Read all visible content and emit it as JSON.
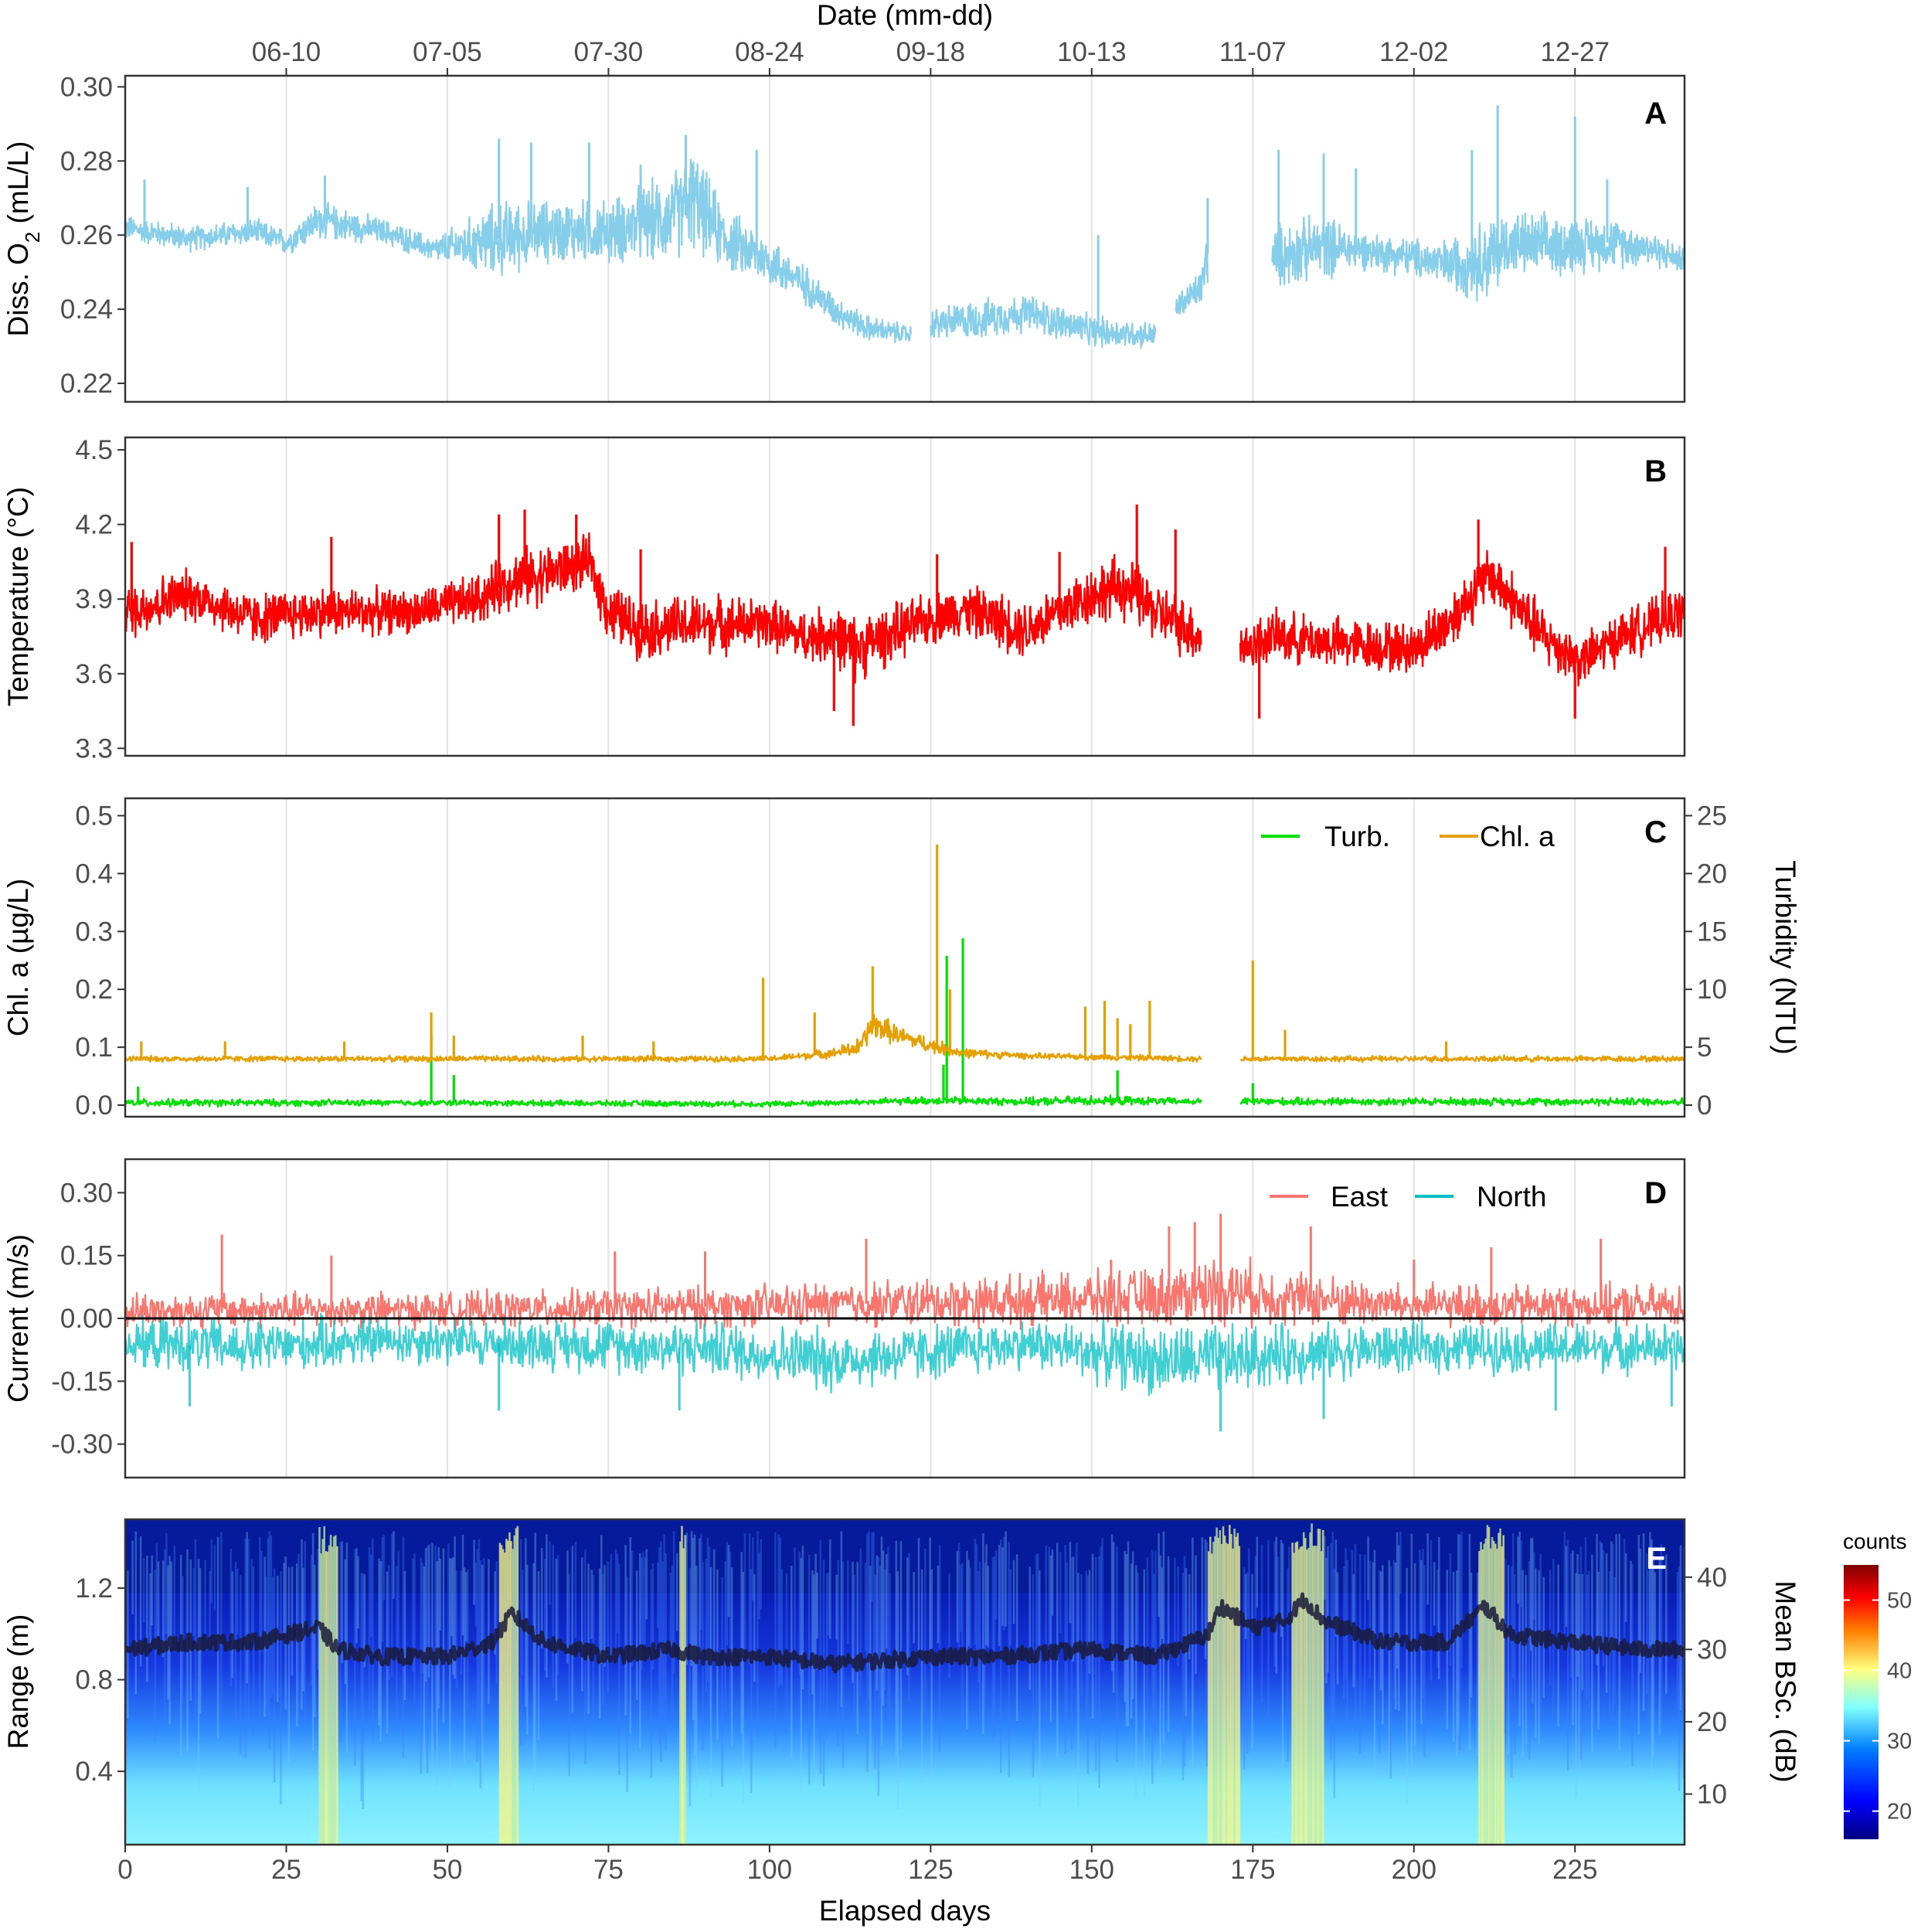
{
  "chart_data": [
    {
      "panel": "A",
      "type": "line",
      "top_axis": {
        "label": "Date (mm-dd)",
        "tick_labels": [
          "06-10",
          "07-05",
          "07-30",
          "08-24",
          "09-18",
          "10-13",
          "11-07",
          "12-02",
          "12-27"
        ],
        "tick_days": [
          25,
          50,
          75,
          100,
          125,
          150,
          175,
          200,
          225
        ]
      },
      "ylabel_main": "Diss. O",
      "ylabel_sub": "2",
      "ylabel_unit": " (mL/L)",
      "ylim": [
        0.215,
        0.303
      ],
      "yticks": [
        0.22,
        0.24,
        0.26,
        0.28,
        0.3
      ],
      "ytick_labels": [
        "0.22",
        "0.24",
        "0.26",
        "0.28",
        "0.30"
      ],
      "xlim": [
        0,
        242
      ],
      "grid": true,
      "series": [
        {
          "color": "#87ceeb",
          "x": [
            0,
            10,
            20,
            25,
            30,
            40,
            48,
            58,
            65,
            75,
            85,
            88,
            93,
            100,
            106,
            110,
            115,
            122,
            123,
            125,
            131,
            140,
            150,
            160,
            161,
            163,
            167,
            168,
            174,
            178,
            186,
            192,
            200,
            205,
            212,
            215,
            220,
            230,
            236,
            242
          ],
          "y": [
            0.262,
            0.259,
            0.261,
            0.258,
            0.264,
            0.261,
            0.256,
            0.259,
            0.261,
            0.261,
            0.265,
            0.27,
            0.259,
            0.253,
            0.246,
            0.24,
            0.235,
            0.233,
            null,
            0.236,
            0.237,
            0.239,
            0.234,
            0.233,
            null,
            0.24,
            0.246,
            0.255,
            null,
            0.254,
            0.257,
            0.256,
            0.254,
            0.252,
            0.254,
            0.258,
            0.257,
            0.258,
            0.257,
            0.253
          ],
          "spread": [
            0.004,
            0.004,
            0.004,
            0.004,
            0.006,
            0.004,
            0.004,
            0.012,
            0.01,
            0.01,
            0.014,
            0.016,
            0.01,
            0.008,
            0.006,
            0.005,
            0.004,
            0.003,
            0,
            0.005,
            0.006,
            0.006,
            0.005,
            0.004,
            0,
            0.004,
            0.006,
            0.01,
            0,
            0.01,
            0.01,
            0.006,
            0.006,
            0.008,
            0.014,
            0.01,
            0.01,
            0.008,
            0.006,
            0.004
          ],
          "peaks": [
            [
              3,
              0.275
            ],
            [
              19,
              0.273
            ],
            [
              31,
              0.276
            ],
            [
              58,
              0.286
            ],
            [
              63,
              0.285
            ],
            [
              72,
              0.285
            ],
            [
              80,
              0.279
            ],
            [
              87,
              0.287
            ],
            [
              98,
              0.283
            ],
            [
              151,
              0.26
            ],
            [
              168,
              0.27
            ],
            [
              179,
              0.283
            ],
            [
              186,
              0.282
            ],
            [
              191,
              0.278
            ],
            [
              209,
              0.283
            ],
            [
              213,
              0.295
            ],
            [
              225,
              0.292
            ],
            [
              230,
              0.275
            ]
          ]
        }
      ]
    },
    {
      "panel": "B",
      "type": "line",
      "ylabel": "Temperature (°C)",
      "ylim": [
        3.27,
        4.55
      ],
      "yticks": [
        3.3,
        3.6,
        3.9,
        4.2,
        4.5
      ],
      "ytick_labels": [
        "3.3",
        "3.6",
        "3.9",
        "4.2",
        "4.5"
      ],
      "xlim": [
        0,
        242
      ],
      "grid": true,
      "series": [
        {
          "color": "#ff0000",
          "x": [
            0,
            10,
            20,
            30,
            45,
            55,
            60,
            65,
            72,
            75,
            80,
            90,
            100,
            105,
            110,
            113,
            118,
            125,
            130,
            140,
            150,
            155,
            160,
            167,
            168,
            173,
            178,
            190,
            200,
            205,
            210,
            212,
            220,
            226,
            232,
            242
          ],
          "y": [
            3.85,
            3.92,
            3.82,
            3.85,
            3.85,
            3.9,
            3.98,
            4.0,
            4.05,
            3.85,
            3.78,
            3.8,
            3.8,
            3.75,
            3.76,
            3.7,
            3.75,
            3.82,
            3.86,
            3.78,
            3.92,
            3.95,
            3.85,
            3.75,
            null,
            3.7,
            3.75,
            3.72,
            3.7,
            3.8,
            3.95,
            4.0,
            3.75,
            3.65,
            3.75,
            3.85
          ],
          "spread": [
            0.14,
            0.12,
            0.12,
            0.12,
            0.1,
            0.12,
            0.14,
            0.14,
            0.12,
            0.14,
            0.14,
            0.14,
            0.12,
            0.12,
            0.14,
            0.16,
            0.14,
            0.12,
            0.12,
            0.14,
            0.14,
            0.16,
            0.14,
            0.14,
            0,
            0.12,
            0.12,
            0.12,
            0.12,
            0.14,
            0.14,
            0.14,
            0.14,
            0.12,
            0.12,
            0.12
          ],
          "peaks": [
            [
              1,
              4.13
            ],
            [
              32,
              4.15
            ],
            [
              58,
              4.24
            ],
            [
              62,
              4.26
            ],
            [
              70,
              4.24
            ],
            [
              80,
              4.1
            ],
            [
              110,
              3.45
            ],
            [
              113,
              3.39
            ],
            [
              126,
              4.08
            ],
            [
              145,
              4.09
            ],
            [
              157,
              4.28
            ],
            [
              163,
              4.18
            ],
            [
              176,
              3.42
            ],
            [
              210,
              4.22
            ],
            [
              225,
              3.42
            ],
            [
              239,
              4.11
            ]
          ]
        }
      ]
    },
    {
      "panel": "C",
      "type": "line",
      "ylabel": "Chl. a (µg/L)",
      "ylabel_right": "Turbidity (NTU)",
      "ylim": [
        -0.02,
        0.53
      ],
      "yticks": [
        0.0,
        0.1,
        0.2,
        0.3,
        0.4,
        0.5
      ],
      "ytick_labels": [
        "0.0",
        "0.1",
        "0.2",
        "0.3",
        "0.4",
        "0.5"
      ],
      "ylim_right": [
        -1,
        26.5
      ],
      "yticks_right": [
        0,
        5,
        10,
        15,
        20,
        25
      ],
      "ytick_labels_right": [
        "0",
        "5",
        "10",
        "15",
        "20",
        "25"
      ],
      "xlim": [
        0,
        242
      ],
      "grid": true,
      "legend": {
        "position": "top-right"
      },
      "series": [
        {
          "name": "Turb.",
          "axis": "right",
          "color": "#00e000",
          "x": [
            0,
            50,
            100,
            110,
            125,
            140,
            150,
            167,
            168,
            173,
            242
          ],
          "y": [
            0.2,
            0.2,
            0.1,
            0.2,
            0.4,
            0.3,
            0.4,
            0.3,
            null,
            0.3,
            0.3
          ],
          "spread": [
            0.4,
            0.3,
            0.3,
            0.3,
            0.4,
            0.4,
            0.5,
            0.3,
            0,
            0.4,
            0.4
          ],
          "peaks": [
            [
              2,
              1.6
            ],
            [
              47.5,
              6.1
            ],
            [
              51,
              2.6
            ],
            [
              127,
              3.5
            ],
            [
              127.5,
              12.9
            ],
            [
              130,
              14.4
            ],
            [
              154,
              3.0
            ],
            [
              175,
              1.9
            ]
          ]
        },
        {
          "name": "Chl. a",
          "axis": "left",
          "color": "#e69f00",
          "x": [
            0,
            50,
            100,
            110,
            114,
            116,
            120,
            126,
            130,
            140,
            167,
            168,
            173,
            242
          ],
          "y": [
            0.08,
            0.08,
            0.08,
            0.09,
            0.1,
            0.14,
            0.12,
            0.1,
            0.09,
            0.085,
            0.08,
            null,
            0.08,
            0.08
          ],
          "spread": [
            0.006,
            0.006,
            0.006,
            0.01,
            0.02,
            0.03,
            0.02,
            0.015,
            0.01,
            0.006,
            0.006,
            0,
            0.006,
            0.006
          ],
          "peaks": [
            [
              2.5,
              0.11
            ],
            [
              15.5,
              0.11
            ],
            [
              34,
              0.11
            ],
            [
              47.5,
              0.16
            ],
            [
              51,
              0.12
            ],
            [
              71,
              0.12
            ],
            [
              82,
              0.11
            ],
            [
              99,
              0.22
            ],
            [
              107,
              0.16
            ],
            [
              116,
              0.24
            ],
            [
              126,
              0.45
            ],
            [
              128,
              0.2
            ],
            [
              149,
              0.17
            ],
            [
              152,
              0.18
            ],
            [
              154,
              0.15
            ],
            [
              156,
              0.14
            ],
            [
              159,
              0.18
            ],
            [
              175,
              0.25
            ],
            [
              180,
              0.13
            ],
            [
              205,
              0.11
            ]
          ]
        }
      ]
    },
    {
      "panel": "D",
      "type": "line",
      "ylabel": "Current (m/s)",
      "ylim": [
        -0.38,
        0.38
      ],
      "yticks": [
        -0.3,
        -0.15,
        0.0,
        0.15,
        0.3
      ],
      "ytick_labels": [
        "-0.30",
        "-0.15",
        "0.00",
        "0.15",
        "0.30"
      ],
      "xlim": [
        0,
        242
      ],
      "grid": true,
      "zero_line": true,
      "legend": {
        "position": "top-right"
      },
      "series": [
        {
          "name": "East",
          "color": "#f8766d",
          "x": [
            0,
            20,
            50,
            100,
            160,
            170,
            180,
            200,
            242
          ],
          "y": [
            0.02,
            0.02,
            0.02,
            0.03,
            0.05,
            0.07,
            0.05,
            0.03,
            0.03
          ],
          "spread": [
            0.05,
            0.05,
            0.05,
            0.06,
            0.08,
            0.1,
            0.08,
            0.06,
            0.06
          ],
          "peaks": [
            [
              15,
              0.2
            ],
            [
              32,
              0.15
            ],
            [
              76,
              0.16
            ],
            [
              90,
              0.16
            ],
            [
              115,
              0.19
            ],
            [
              153,
              0.14
            ],
            [
              162,
              0.22
            ],
            [
              166,
              0.23
            ],
            [
              170,
              0.25
            ],
            [
              184,
              0.22
            ],
            [
              200,
              0.14
            ],
            [
              212,
              0.17
            ],
            [
              229,
              0.19
            ]
          ]
        },
        {
          "name": "North",
          "color": "#00bfc4",
          "x": [
            0,
            20,
            40,
            60,
            90,
            110,
            140,
            160,
            170,
            185,
            200,
            242
          ],
          "y": [
            -0.06,
            -0.07,
            -0.05,
            -0.06,
            -0.07,
            -0.1,
            -0.06,
            -0.1,
            -0.1,
            -0.08,
            -0.07,
            -0.07
          ],
          "spread": [
            0.07,
            0.08,
            0.07,
            0.07,
            0.08,
            0.09,
            0.07,
            0.1,
            0.1,
            0.08,
            0.07,
            0.07
          ],
          "peaks": [
            [
              10,
              -0.21
            ],
            [
              58,
              -0.22
            ],
            [
              86,
              -0.22
            ],
            [
              170,
              -0.27
            ],
            [
              186,
              -0.24
            ],
            [
              222,
              -0.22
            ],
            [
              240,
              -0.21
            ]
          ]
        }
      ]
    },
    {
      "panel": "E",
      "type": "heatmap",
      "xlabel": "Elapsed days",
      "ylabel": "Range (m)",
      "ylabel_right": "Mean BSc. (dB)",
      "xlim": [
        0,
        242
      ],
      "xticks": [
        0,
        25,
        50,
        75,
        100,
        125,
        150,
        175,
        200,
        225
      ],
      "xtick_labels": [
        "0",
        "25",
        "50",
        "75",
        "100",
        "125",
        "150",
        "175",
        "200",
        "225"
      ],
      "ylim": [
        0.08,
        1.5
      ],
      "yticks": [
        0.4,
        0.8,
        1.2
      ],
      "ytick_labels": [
        "0.4",
        "0.8",
        "1.2"
      ],
      "ylim_right": [
        3,
        48
      ],
      "yticks_right": [
        10,
        20,
        30,
        40
      ],
      "ytick_labels_right": [
        "10",
        "20",
        "30",
        "40"
      ],
      "colorbar": {
        "title": "counts",
        "tick_values": [
          20,
          30,
          40,
          50
        ],
        "tick_labels": [
          "20",
          "30",
          "40",
          "50"
        ],
        "range": [
          16,
          55
        ],
        "colors": [
          "#00007f",
          "#0000ff",
          "#007fff",
          "#7fffff",
          "#ffff7f",
          "#ff7f00",
          "#ff0000",
          "#7f0000"
        ]
      },
      "mean_bsc_series": {
        "color": "#1a1a3a",
        "x": [
          0,
          10,
          20,
          30,
          33,
          40,
          50,
          57,
          60,
          65,
          75,
          85,
          90,
          100,
          110,
          125,
          135,
          150,
          160,
          168,
          170,
          175,
          180,
          183,
          186,
          195,
          205,
          211,
          215,
          225,
          235,
          242
        ],
        "y": [
          30,
          31,
          31,
          33,
          30,
          29,
          29,
          31,
          35,
          31,
          29,
          30,
          29,
          29,
          28,
          29,
          29,
          30,
          29,
          32,
          36,
          33,
          34,
          37,
          34,
          31,
          31,
          36,
          32,
          31,
          30,
          30
        ]
      },
      "bright_days": [
        30,
        31,
        32,
        58,
        59,
        60,
        86,
        168,
        169,
        170,
        171,
        172,
        181,
        182,
        183,
        184,
        185,
        210,
        211,
        212,
        213
      ]
    }
  ],
  "panel_labels": [
    "A",
    "B",
    "C",
    "D",
    "E"
  ]
}
